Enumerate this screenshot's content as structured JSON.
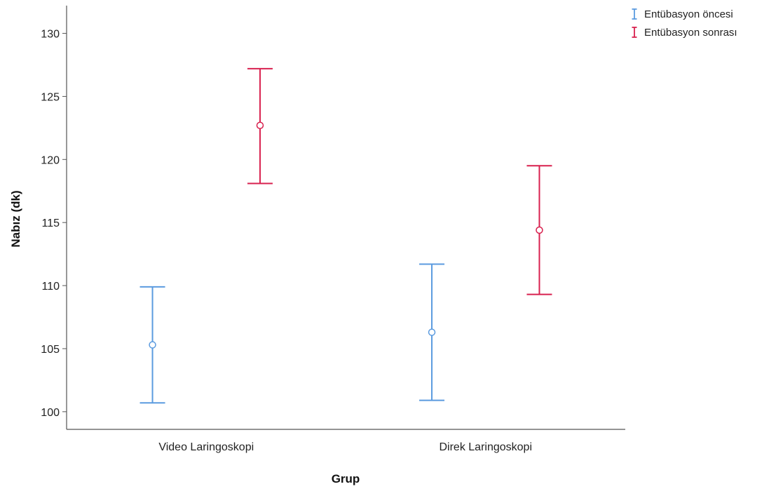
{
  "chart_data": {
    "type": "error-bar",
    "xlabel": "Grup",
    "ylabel": "Nabız (dk)",
    "categories": [
      "Video Laringoskopi",
      "Direk Laringoskopi"
    ],
    "ylim": [
      98.6,
      132.2
    ],
    "yticks": [
      100,
      105,
      110,
      115,
      120,
      125,
      130
    ],
    "grid": false,
    "legend_position": "top-right",
    "series": [
      {
        "name": "Entübasyon öncesi",
        "color": "#5b9bdf",
        "mean": [
          105.3,
          106.3
        ],
        "lower": [
          100.7,
          100.9
        ],
        "upper": [
          109.9,
          111.7
        ]
      },
      {
        "name": "Entübasyon sonrası",
        "color": "#d8214f",
        "mean": [
          122.7,
          114.4
        ],
        "lower": [
          118.1,
          109.3
        ],
        "upper": [
          127.2,
          119.5
        ]
      }
    ]
  }
}
